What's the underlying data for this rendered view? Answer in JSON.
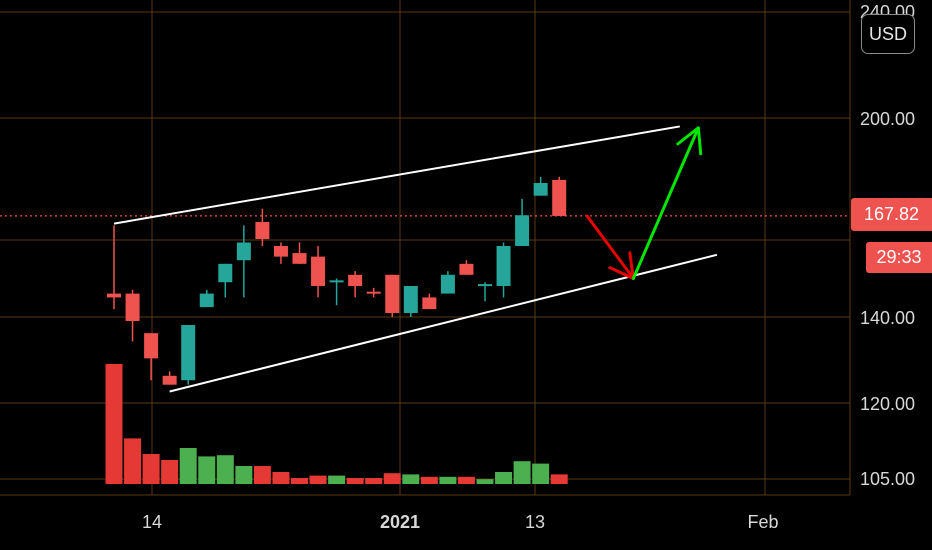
{
  "currency": "USD",
  "last_price_label": "167.82",
  "countdown_label": "29:33",
  "colors": {
    "up": "#26a69a",
    "down": "#ef5350",
    "volume_up": "#4caf50",
    "volume_down": "#e53935",
    "grid": "#5a3a10",
    "trendline": "#ffffff",
    "arrow_up": "#00e600",
    "arrow_down": "#e60000"
  },
  "chart_data": {
    "type": "candlestick",
    "y_axis_labels": [
      "240.00",
      "200.00",
      "167.82",
      "140.00",
      "120.00",
      "105.00"
    ],
    "x_axis_labels": [
      {
        "text": "14",
        "bold": false
      },
      {
        "text": "2021",
        "bold": true
      },
      {
        "text": "13",
        "bold": false
      },
      {
        "text": "Feb",
        "bold": false
      }
    ],
    "last_price": 167.82,
    "candles": [
      {
        "open": 146.0,
        "high": 165.0,
        "low": 142.0,
        "close": 145.0
      },
      {
        "open": 146.0,
        "high": 147.0,
        "low": 134.0,
        "close": 139.0
      },
      {
        "open": 136.0,
        "high": 136.0,
        "low": 125.0,
        "close": 130.0
      },
      {
        "open": 126.0,
        "high": 127.0,
        "low": 124.0,
        "close": 124.0
      },
      {
        "open": 125.0,
        "high": 138.0,
        "low": 124.0,
        "close": 138.0
      },
      {
        "open": 142.5,
        "high": 147.0,
        "low": 142.5,
        "close": 146.0
      },
      {
        "open": 149.0,
        "high": 154.0,
        "low": 145.0,
        "close": 154.0
      },
      {
        "open": 155.0,
        "high": 165.0,
        "low": 145.0,
        "close": 160.0
      },
      {
        "open": 166.0,
        "high": 170.0,
        "low": 159.0,
        "close": 161.0
      },
      {
        "open": 159.0,
        "high": 160.0,
        "low": 154.0,
        "close": 156.0
      },
      {
        "open": 157.0,
        "high": 160.0,
        "low": 154.0,
        "close": 154.0
      },
      {
        "open": 156.0,
        "high": 159.0,
        "low": 145.0,
        "close": 148.0
      },
      {
        "open": 149.0,
        "high": 150.0,
        "low": 143.0,
        "close": 149.5
      },
      {
        "open": 151.0,
        "high": 152.0,
        "low": 145.0,
        "close": 148.0
      },
      {
        "open": 146.5,
        "high": 147.5,
        "low": 145.0,
        "close": 146.0
      },
      {
        "open": 151.0,
        "high": 151.0,
        "low": 140.0,
        "close": 141.0
      },
      {
        "open": 141.0,
        "high": 148.0,
        "low": 140.0,
        "close": 148.0
      },
      {
        "open": 145.0,
        "high": 146.0,
        "low": 142.0,
        "close": 142.0
      },
      {
        "open": 146.0,
        "high": 152.0,
        "low": 146.0,
        "close": 151.0
      },
      {
        "open": 154.0,
        "high": 155.0,
        "low": 151.0,
        "close": 151.0
      },
      {
        "open": 148.0,
        "high": 149.0,
        "low": 144.0,
        "close": 148.5
      },
      {
        "open": 148.0,
        "high": 160.0,
        "low": 145.0,
        "close": 159.0
      },
      {
        "open": 159.0,
        "high": 173.0,
        "low": 159.0,
        "close": 168.0
      },
      {
        "open": 174.0,
        "high": 180.0,
        "low": 174.0,
        "close": 178.0
      },
      {
        "open": 179.0,
        "high": 180.0,
        "low": 167.8,
        "close": 167.8
      }
    ],
    "volume_units": "relative (tallest bar = 1.0)",
    "volumes": [
      1.0,
      0.38,
      0.25,
      0.2,
      0.3,
      0.23,
      0.24,
      0.15,
      0.15,
      0.1,
      0.05,
      0.07,
      0.07,
      0.05,
      0.05,
      0.09,
      0.08,
      0.06,
      0.06,
      0.06,
      0.04,
      0.1,
      0.19,
      0.17,
      0.08
    ],
    "trendlines": [
      {
        "from": {
          "bar": 0,
          "price": 165.5
        },
        "to": {
          "bar": 30.5,
          "price": 197.0
        }
      },
      {
        "from": {
          "bar": 3,
          "price": 122.5
        },
        "to": {
          "bar": 32.5,
          "price": 156.5
        }
      }
    ],
    "arrows": [
      {
        "color": "down",
        "from": {
          "bar": 25.5,
          "price": 167.8
        },
        "to": {
          "bar": 28,
          "price": 150.0
        }
      },
      {
        "color": "up",
        "from": {
          "bar": 28,
          "price": 150.0
        },
        "to": {
          "bar": 31.5,
          "price": 196.5
        }
      }
    ]
  }
}
